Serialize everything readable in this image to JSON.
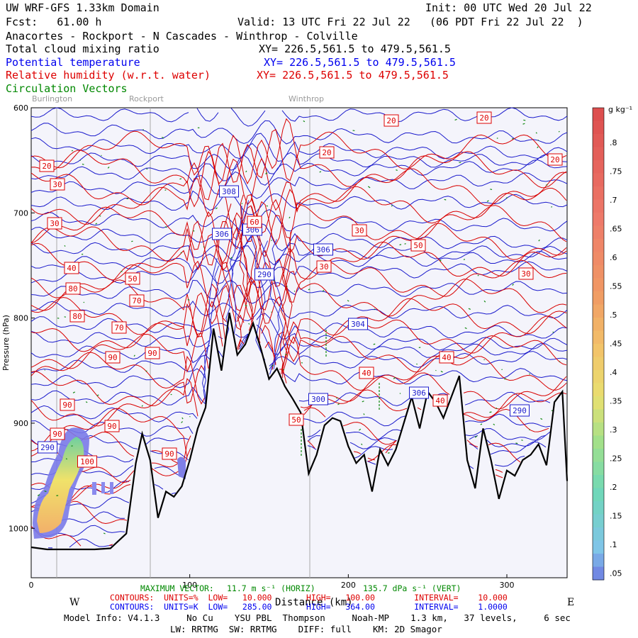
{
  "header": {
    "title": "UW WRF-GFS 1.33km Domain",
    "init": "Init: 00 UTC Wed 20 Jul 22",
    "fcst": "Fcst:   61.00 h",
    "valid": "Valid: 13 UTC Fri 22 Jul 22   (06 PDT Fri 22 Jul 22  )",
    "route": "Anacortes - Rockport - N Cascades - Winthrop - Colville",
    "field1": "Total cloud mixing ratio",
    "xy1": "XY= 226.5,561.5 to 479.5,561.5",
    "field2": "Potential temperature",
    "xy2": "XY= 226.5,561.5 to 479.5,561.5",
    "field3": "Relative humidity (w.r.t. water)",
    "xy3": "XY= 226.5,561.5 to 479.5,561.5",
    "field4": "Circulation Vectors"
  },
  "places": [
    "Burlington",
    "Rockport",
    "Winthrop"
  ],
  "colorbar": {
    "units": "g kg⁻¹",
    "ticks": [
      ".8",
      ".75",
      ".7",
      ".65",
      ".6",
      ".55",
      ".5",
      ".45",
      ".4",
      ".35",
      ".3",
      ".25",
      ".2",
      ".15",
      ".1",
      ".05"
    ]
  },
  "footer": {
    "max_vector_label": "MAXIMUM VECTOR:",
    "max_vector_h": "11.7 m s⁻¹ (HORIZ)",
    "max_vector_v": "135.7 dPa s⁻¹ (VERT)",
    "distance_label": "Distance (km)",
    "west": "W",
    "east": "E",
    "rh_contours": "CONTOURS:  UNITS=%  LOW=   10.000       HIGH=   100.00        INTERVAL=    10.000",
    "th_contours": "CONTOURS:  UNITS=K  LOW=   285.00       HIGH=   364.00        INTERVAL=    1.0000",
    "model_info": "Model Info: V4.1.3     No Cu    YSU PBL  Thompson     Noah-MP    1.3 km,   37 levels,     6 sec",
    "schemes": "LW: RRTMG  SW: RRTMG    DIFF: full    KM: 2D Smagor"
  },
  "chart_data": {
    "type": "cross-section",
    "title": "Total cloud mixing ratio / Potential temperature / Relative humidity / Circulation vectors",
    "xlabel": "Distance (km)",
    "ylabel": "Pressure (hPa)",
    "x_ticks": [
      "0",
      "100",
      "200",
      "300"
    ],
    "xlim": [
      0,
      338
    ],
    "y_ticks": [
      "600",
      "700",
      "800",
      "900",
      "1000"
    ],
    "ylim": [
      1047,
      600
    ],
    "terrain": {
      "x_km": [
        0,
        10,
        20,
        30,
        40,
        50,
        60,
        66,
        70,
        75,
        80,
        85,
        90,
        95,
        100,
        105,
        110,
        115,
        120,
        125,
        130,
        135,
        140,
        145,
        150,
        155,
        160,
        165,
        170,
        175,
        180,
        185,
        190,
        195,
        200,
        205,
        210,
        215,
        220,
        225,
        230,
        235,
        240,
        245,
        250,
        255,
        260,
        265,
        270,
        275,
        280,
        285,
        290,
        295,
        300,
        305,
        310,
        315,
        320,
        325,
        330,
        335,
        338
      ],
      "pressure_hPa": [
        1018,
        1020,
        1020,
        1020,
        1020,
        1019,
        1005,
        938,
        910,
        935,
        990,
        965,
        970,
        960,
        935,
        905,
        885,
        810,
        850,
        795,
        835,
        825,
        805,
        830,
        858,
        848,
        865,
        877,
        890,
        948,
        930,
        902,
        895,
        898,
        922,
        938,
        930,
        965,
        925,
        940,
        925,
        900,
        875,
        905,
        870,
        880,
        895,
        875,
        855,
        935,
        962,
        905,
        935,
        972,
        945,
        950,
        935,
        930,
        920,
        940,
        880,
        870,
        955
      ]
    },
    "theta_labels_K": [
      "290",
      "300",
      "304",
      "306",
      "306",
      "306",
      "306",
      "308",
      "290",
      "290"
    ],
    "rh_labels_pct": [
      "20",
      "20",
      "20",
      "20",
      "20",
      "30",
      "30",
      "30",
      "30",
      "30",
      "40",
      "40",
      "40",
      "40",
      "50",
      "50",
      "50",
      "60",
      "70",
      "70",
      "80",
      "80",
      "90",
      "90",
      "90",
      "90",
      "90",
      "90",
      "100"
    ],
    "cloud_max_g_per_kg": 0.45
  }
}
